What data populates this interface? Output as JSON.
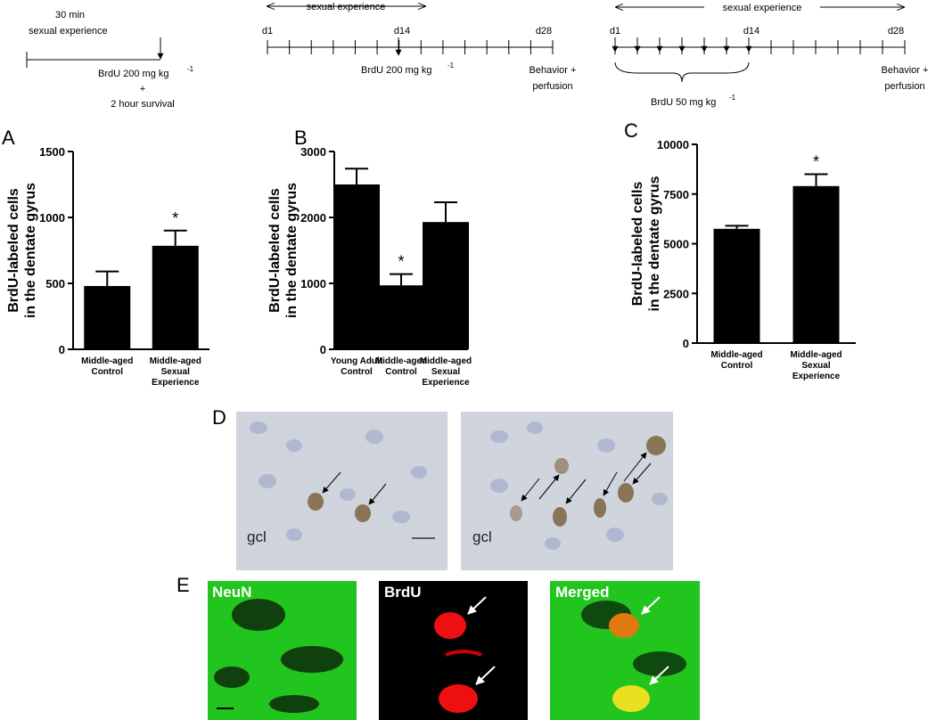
{
  "timelines": [
    {
      "lines": [
        "30 min",
        "sexual experience"
      ],
      "brdu": "BrdU 200 mg kg",
      "brdu_sup": "-1",
      "after": [
        "+",
        "2 hour survival"
      ]
    },
    {
      "span": "sexual experience",
      "days": [
        "d1",
        "d14",
        "d28"
      ],
      "brdu": "BrdU 200 mg kg",
      "brdu_sup": "-1",
      "end": [
        "Behavior +",
        "perfusion"
      ]
    },
    {
      "span": "sexual experience",
      "days": [
        "d1",
        "d14",
        "d28"
      ],
      "brdu": "BrdU 50 mg kg",
      "brdu_sup": "-1",
      "end": [
        "Behavior +",
        "perfusion"
      ]
    }
  ],
  "chart_data": [
    {
      "type": "bar",
      "panel": "A",
      "ylabel": [
        "BrdU-labeled cells",
        "in the dentate gyrus"
      ],
      "categories": [
        [
          "Middle-aged",
          "Control"
        ],
        [
          "Middle-aged",
          "Sexual",
          "Experience"
        ]
      ],
      "values": [
        480,
        785
      ],
      "errors": [
        110,
        115
      ],
      "color": "#000000",
      "ylim": [
        0,
        1500
      ],
      "yticks": [
        0,
        500,
        1000,
        1500
      ],
      "annotations": [
        {
          "text": "*",
          "category": 1
        }
      ]
    },
    {
      "type": "bar",
      "panel": "B",
      "ylabel": [
        "BrdU-labeled cells",
        "in the dentate gyrus"
      ],
      "categories": [
        [
          "Young Adult",
          "Control"
        ],
        [
          "Middle-aged",
          "Control"
        ],
        [
          "Middle-aged",
          "Sexual",
          "Experience"
        ]
      ],
      "values": [
        2500,
        970,
        1930
      ],
      "errors": [
        240,
        170,
        300
      ],
      "color": "#000000",
      "ylim": [
        0,
        3000
      ],
      "yticks": [
        0,
        1000,
        2000,
        3000
      ],
      "annotations": [
        {
          "text": "*",
          "category": 1
        }
      ]
    },
    {
      "type": "bar",
      "panel": "C",
      "ylabel": [
        "BrdU-labeled cells",
        "in the dentate gyrus"
      ],
      "categories": [
        [
          "Middle-aged",
          "Control"
        ],
        [
          "Middle-aged",
          "Sexual",
          "Experience"
        ]
      ],
      "values": [
        5750,
        7900
      ],
      "errors": [
        150,
        600
      ],
      "color": "#000000",
      "ylim": [
        0,
        10000
      ],
      "yticks": [
        0,
        2500,
        5000,
        7500,
        10000
      ],
      "annotations": [
        {
          "text": "*",
          "category": 1
        }
      ]
    }
  ],
  "micrographs": {
    "d": {
      "panel": "D",
      "labels": [
        "gcl",
        "gcl"
      ]
    },
    "e": {
      "panel": "E",
      "labels": [
        "NeuN",
        "BrdU",
        "Merged"
      ]
    }
  }
}
